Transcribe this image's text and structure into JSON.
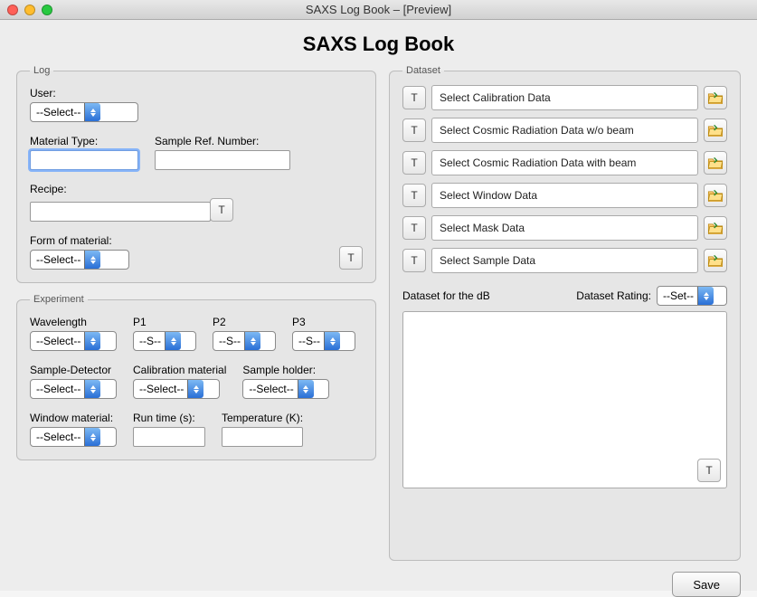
{
  "window": {
    "title": "SAXS Log Book – [Preview]"
  },
  "heading": "SAXS Log Book",
  "log": {
    "legend": "Log",
    "user_label": "User:",
    "user_value": "--Select--",
    "material_type_label": "Material Type:",
    "material_type_value": "",
    "sample_ref_label": "Sample Ref. Number:",
    "sample_ref_value": "",
    "recipe_label": "Recipe:",
    "recipe_value": "",
    "recipe_button": "T",
    "form_label": "Form of material:",
    "form_value": "--Select--",
    "log_button": "T"
  },
  "experiment": {
    "legend": "Experiment",
    "wavelength_label": "Wavelength",
    "wavelength_value": "--Select--",
    "p1_label": "P1",
    "p1_value": "--S--",
    "p2_label": "P2",
    "p2_value": "--S--",
    "p3_label": "P3",
    "p3_value": "--S--",
    "sd_label": "Sample-Detector",
    "sd_value": "--Select--",
    "cal_label": "Calibration material",
    "cal_value": "--Select--",
    "holder_label": "Sample holder:",
    "holder_value": "--Select--",
    "winmat_label": "Window material:",
    "winmat_value": "--Select--",
    "runtime_label": "Run time (s):",
    "runtime_value": "",
    "temp_label": "Temperature (K):",
    "temp_value": ""
  },
  "dataset": {
    "legend": "Dataset",
    "rows": [
      {
        "t": "T",
        "text": "Select Calibration Data"
      },
      {
        "t": "T",
        "text": "Select Cosmic Radiation Data w/o beam"
      },
      {
        "t": "T",
        "text": "Select Cosmic Radiation Data with beam"
      },
      {
        "t": "T",
        "text": "Select Window Data"
      },
      {
        "t": "T",
        "text": "Select Mask Data"
      },
      {
        "t": "T",
        "text": "Select Sample Data"
      }
    ],
    "db_label": "Dataset for the dB",
    "rating_label": "Dataset Rating:",
    "rating_value": "--Set--",
    "corner_button": "T"
  },
  "save_label": "Save",
  "colors": {
    "accent_top": "#7db9f4",
    "accent_bottom": "#2a6fd6",
    "panel": "#e6e6e6",
    "border": "#bcbcbc"
  }
}
